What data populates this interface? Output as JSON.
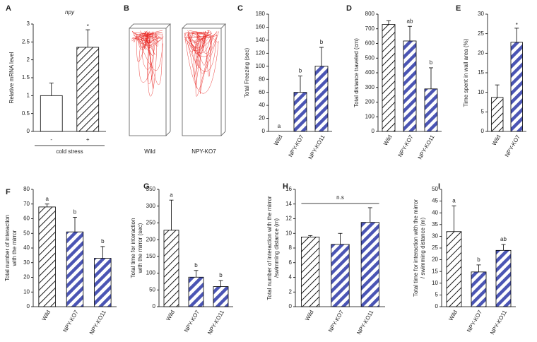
{
  "chart_data": [
    {
      "type": "bar",
      "panel": "A",
      "title": "npy",
      "ylabel": "Relative mRNA level",
      "categories": [
        "-",
        "+"
      ],
      "group_label": "cold stress",
      "values": [
        1.0,
        2.35
      ],
      "errors": [
        0.35,
        0.49
      ],
      "hatch_colors": [
        null,
        "#000000"
      ],
      "annotations": [
        null,
        "*"
      ],
      "ylim": [
        0,
        3
      ],
      "yticks": [
        0,
        0.5,
        1,
        1.5,
        2,
        2.5,
        3
      ]
    },
    {
      "type": "image",
      "panel": "B",
      "labels": [
        "Wild",
        "NPY-KO7"
      ],
      "color": "#e8201c"
    },
    {
      "type": "bar",
      "panel": "C",
      "ylabel": "Total Freezing (sec)",
      "categories": [
        "Wild",
        "NPY-KO7",
        "NPY-KO11"
      ],
      "values": [
        0,
        60,
        100
      ],
      "errors": [
        0,
        25,
        29
      ],
      "hatch_colors": [
        "#000000",
        "#4b55b4",
        "#4b55b4"
      ],
      "annotations": [
        "a",
        "b",
        "b"
      ],
      "ylim": [
        0,
        180
      ],
      "yticks": [
        0,
        20,
        40,
        60,
        80,
        100,
        120,
        140,
        160,
        180
      ]
    },
    {
      "type": "bar",
      "panel": "D",
      "ylabel": "Total distance traveled (cm)",
      "categories": [
        "Wild",
        "NPY-KO7",
        "NPY-KO11"
      ],
      "values": [
        730,
        617,
        290
      ],
      "errors": [
        25,
        100,
        144
      ],
      "hatch_colors": [
        "#000000",
        "#4b55b4",
        "#4b55b4"
      ],
      "annotations": [
        null,
        "ab",
        "b"
      ],
      "ylim": [
        0,
        800
      ],
      "yticks": [
        0,
        100,
        200,
        300,
        400,
        500,
        600,
        700,
        800
      ]
    },
    {
      "type": "bar",
      "panel": "E",
      "ylabel": "Time spent in wall area (%)",
      "categories": [
        "Wild",
        "NPY-KO7"
      ],
      "values": [
        8.7,
        22.8
      ],
      "errors": [
        3.2,
        3.6
      ],
      "hatch_colors": [
        "#000000",
        "#4b55b4"
      ],
      "annotations": [
        null,
        "*"
      ],
      "ylim": [
        0,
        30
      ],
      "yticks": [
        0,
        5,
        10,
        15,
        20,
        25,
        30
      ]
    },
    {
      "type": "bar",
      "panel": "F",
      "ylabel": [
        "Total number of interaction",
        "with the mirror"
      ],
      "categories": [
        "Wild",
        "NPY-KO7",
        "NPY-KO11"
      ],
      "values": [
        68,
        51,
        33
      ],
      "errors": [
        2,
        10,
        8
      ],
      "hatch_colors": [
        "#000000",
        "#4b55b4",
        "#4b55b4"
      ],
      "annotations": [
        "a",
        "b",
        "b"
      ],
      "ylim": [
        0,
        80
      ],
      "yticks": [
        0,
        10,
        20,
        30,
        40,
        50,
        60,
        70,
        80
      ]
    },
    {
      "type": "bar",
      "panel": "G",
      "ylabel": [
        "Total time for interaction",
        "with the mirror (sec)"
      ],
      "categories": [
        "Wild",
        "NPY-KO7",
        "NPY-KO11"
      ],
      "values": [
        228,
        88,
        60
      ],
      "errors": [
        90,
        20,
        18
      ],
      "hatch_colors": [
        "#000000",
        "#4b55b4",
        "#4b55b4"
      ],
      "annotations": [
        "a",
        "b",
        "b"
      ],
      "ylim": [
        0,
        350
      ],
      "yticks": [
        0,
        50,
        100,
        150,
        200,
        250,
        300,
        350
      ]
    },
    {
      "type": "bar",
      "panel": "H",
      "ylabel": [
        "Total number of interaction with the mirror",
        "/swimming distance (m)"
      ],
      "categories": [
        "Wild",
        "NPY-KO7",
        "NPY-KO11"
      ],
      "values": [
        9.5,
        8.5,
        11.5
      ],
      "errors": [
        0.2,
        1.5,
        2.0
      ],
      "hatch_colors": [
        "#000000",
        "#4b55b4",
        "#4b55b4"
      ],
      "annotation": "n.s",
      "ylim": [
        0,
        16
      ],
      "yticks": [
        0,
        2,
        4,
        6,
        8,
        10,
        12,
        14,
        16
      ]
    },
    {
      "type": "bar",
      "panel": "I",
      "ylabel": [
        "Total time for interaction with the mirror",
        "/ swimming distance (m)"
      ],
      "categories": [
        "Wild",
        "NPY-KO7",
        "NPY-KO11"
      ],
      "values": [
        32,
        14.8,
        24
      ],
      "errors": [
        11,
        3,
        2.5
      ],
      "hatch_colors": [
        "#000000",
        "#4b55b4",
        "#4b55b4"
      ],
      "annotations": [
        "a",
        "b",
        "ab"
      ],
      "ylim": [
        0,
        50
      ],
      "yticks": [
        0,
        5,
        10,
        15,
        20,
        25,
        30,
        35,
        40,
        45,
        50
      ]
    }
  ]
}
